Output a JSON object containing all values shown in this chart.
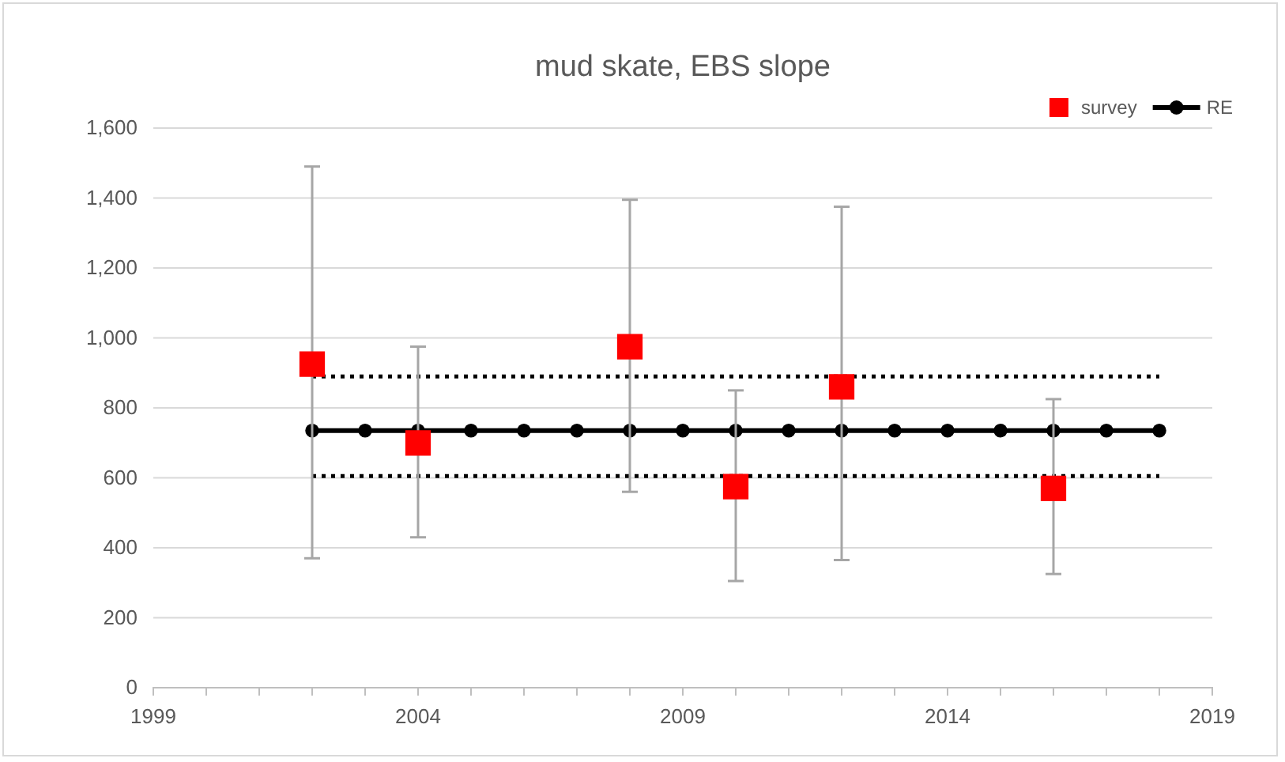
{
  "chart_data": {
    "type": "scatter",
    "title": "mud skate, EBS slope",
    "xlim": [
      1999,
      2019
    ],
    "xticks": [
      1999,
      {
        "value": 2000,
        "label": null
      },
      {
        "value": 2001,
        "label": null
      },
      {
        "value": 2002,
        "label": null
      },
      {
        "value": 2003,
        "label": null
      },
      2004,
      {
        "value": 2005,
        "label": null
      },
      {
        "value": 2006,
        "label": null
      },
      {
        "value": 2007,
        "label": null
      },
      {
        "value": 2008,
        "label": null
      },
      2009,
      {
        "value": 2010,
        "label": null
      },
      {
        "value": 2011,
        "label": null
      },
      {
        "value": 2012,
        "label": null
      },
      {
        "value": 2013,
        "label": null
      },
      2014,
      {
        "value": 2015,
        "label": null
      },
      {
        "value": 2016,
        "label": null
      },
      {
        "value": 2017,
        "label": null
      },
      {
        "value": 2018,
        "label": null
      },
      2019
    ],
    "ylim": [
      0,
      1600
    ],
    "yticks": [
      {
        "value": 0,
        "label": "0"
      },
      {
        "value": 200,
        "label": "200"
      },
      {
        "value": 400,
        "label": "400"
      },
      {
        "value": 600,
        "label": "600"
      },
      {
        "value": 800,
        "label": "800"
      },
      {
        "value": 1000,
        "label": "1,000"
      },
      {
        "value": 1200,
        "label": "1,200"
      },
      {
        "value": 1400,
        "label": "1,400"
      },
      {
        "value": 1600,
        "label": "1,600"
      }
    ],
    "grid": "y",
    "legend": "top right",
    "series": [
      {
        "type": "line",
        "color": "#000000",
        "marker": "none",
        "line_style": "dotted",
        "x": [
          2002,
          2018
        ],
        "values": [
          890,
          890
        ]
      },
      {
        "type": "line",
        "color": "#000000",
        "marker": "none",
        "line_style": "dotted",
        "x": [
          2002,
          2018
        ],
        "values": [
          605,
          605
        ]
      },
      {
        "name": "RE",
        "type": "line",
        "color": "#000000",
        "marker": "circle",
        "line_style": "solid",
        "x": [
          2002,
          2003,
          2004,
          2005,
          2006,
          2007,
          2008,
          2009,
          2010,
          2011,
          2012,
          2013,
          2014,
          2015,
          2016,
          2017,
          2018
        ],
        "values": [
          735,
          735,
          735,
          735,
          735,
          735,
          735,
          735,
          735,
          735,
          735,
          735,
          735,
          735,
          735,
          735,
          735
        ]
      },
      {
        "name": "survey",
        "color": "#ff0000",
        "marker": "square",
        "x": [
          2002,
          2004,
          2008,
          2010,
          2012,
          2016
        ],
        "values": [
          925,
          700,
          975,
          575,
          860,
          570
        ],
        "errors": [
          [
            370,
            1490
          ],
          [
            430,
            975
          ],
          [
            560,
            1395
          ],
          [
            305,
            850
          ],
          [
            365,
            1375
          ],
          [
            325,
            825
          ]
        ]
      }
    ]
  }
}
